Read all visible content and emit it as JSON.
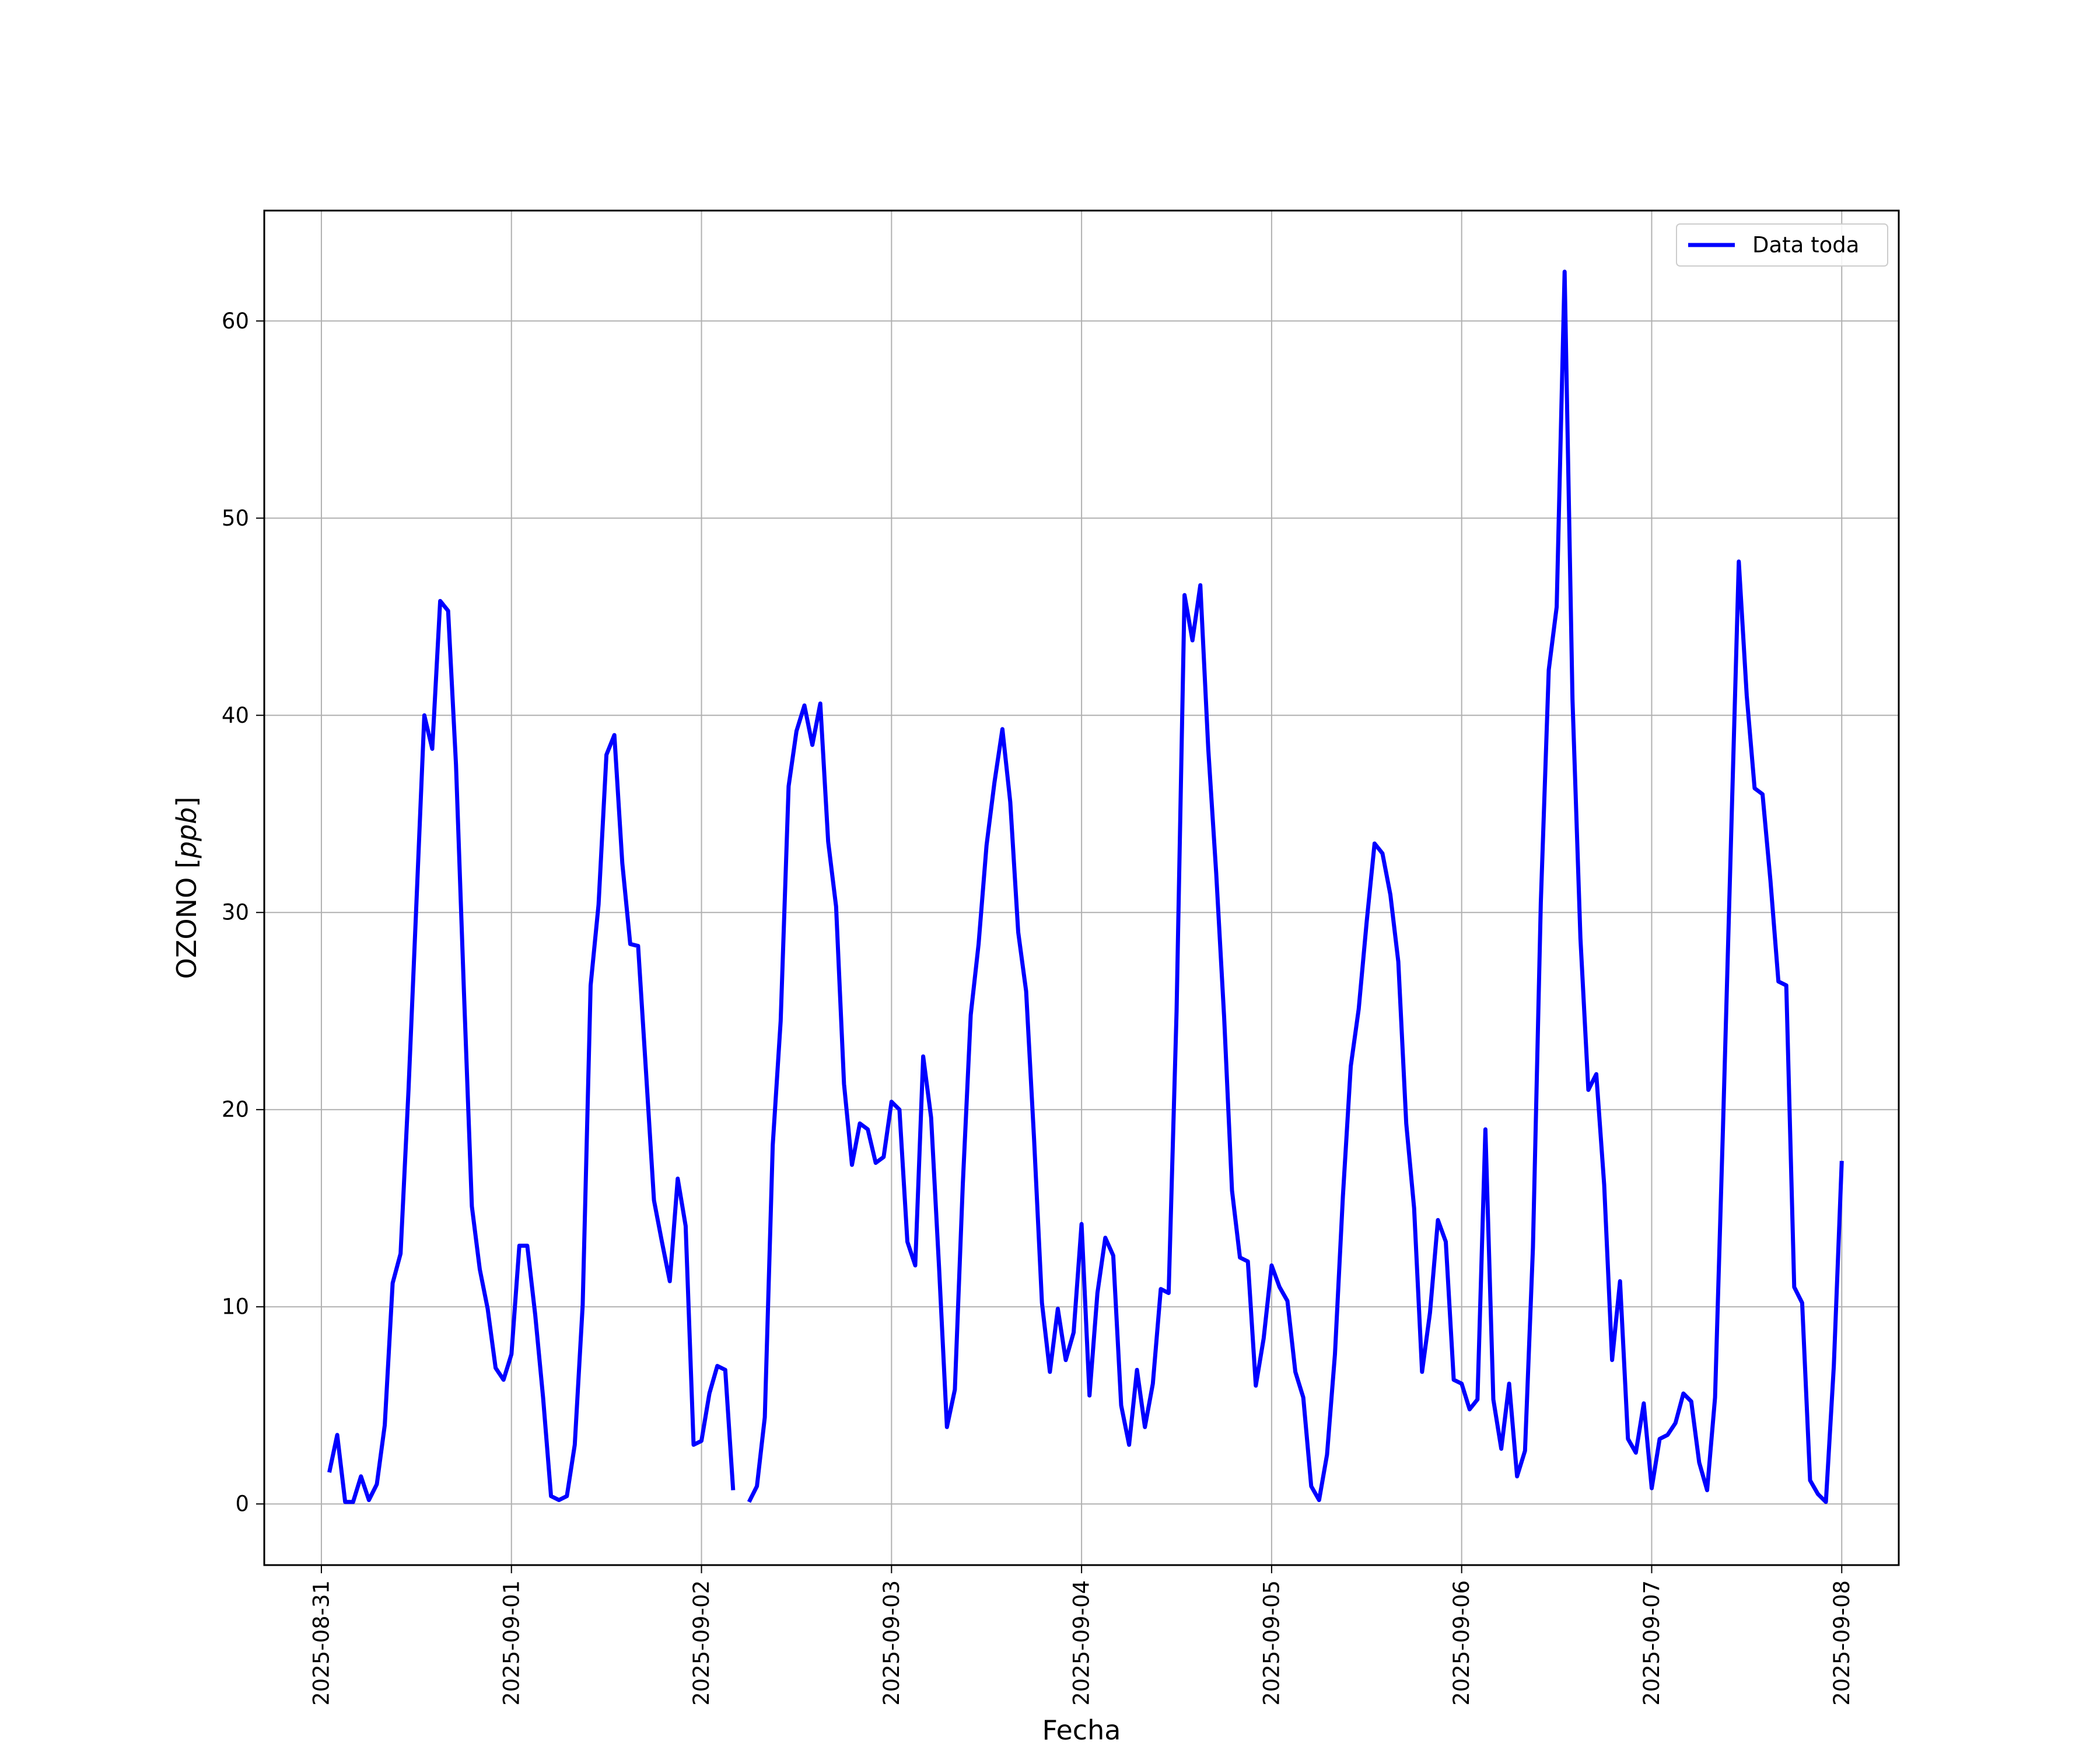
{
  "chart_data": {
    "type": "line",
    "xlabel": "Fecha",
    "ylabel": "OZONO [ppb]",
    "x_ticks": [
      "2025-08-31",
      "2025-09-01",
      "2025-09-02",
      "2025-09-03",
      "2025-09-04",
      "2025-09-05",
      "2025-09-06",
      "2025-09-07",
      "2025-09-08"
    ],
    "y_ticks": [
      0,
      10,
      20,
      30,
      40,
      50,
      60
    ],
    "xlim": [
      "2025-08-30T16:47",
      "2025-09-08T07:12"
    ],
    "ylim": [
      -3.1,
      65.6
    ],
    "grid": true,
    "legend_position": "top-right",
    "series": [
      {
        "name": "Data toda",
        "color": "#0000ff",
        "points": [
          [
            "2025-08-31T01:00",
            1.6
          ],
          [
            "2025-08-31T02:00",
            3.5
          ],
          [
            "2025-08-31T03:00",
            0.1
          ],
          [
            "2025-08-31T04:00",
            0.1
          ],
          [
            "2025-08-31T05:00",
            1.4
          ],
          [
            "2025-08-31T06:00",
            0.2
          ],
          [
            "2025-08-31T07:00",
            1.0
          ],
          [
            "2025-08-31T08:00",
            4.0
          ],
          [
            "2025-08-31T09:00",
            11.2
          ],
          [
            "2025-08-31T10:00",
            12.7
          ],
          [
            "2025-08-31T11:00",
            21.0
          ],
          [
            "2025-08-31T12:00",
            30.5
          ],
          [
            "2025-08-31T13:00",
            40.0
          ],
          [
            "2025-08-31T14:00",
            38.3
          ],
          [
            "2025-08-31T15:00",
            45.8
          ],
          [
            "2025-08-31T16:00",
            45.3
          ],
          [
            "2025-08-31T17:00",
            37.5
          ],
          [
            "2025-08-31T18:00",
            26.0
          ],
          [
            "2025-08-31T19:00",
            15.1
          ],
          [
            "2025-08-31T20:00",
            11.9
          ],
          [
            "2025-08-31T21:00",
            9.9
          ],
          [
            "2025-08-31T22:00",
            6.9
          ],
          [
            "2025-08-31T23:00",
            6.3
          ],
          [
            "2025-09-01T00:00",
            7.6
          ],
          [
            "2025-09-01T01:00",
            13.1
          ],
          [
            "2025-09-01T02:00",
            13.1
          ],
          [
            "2025-09-01T03:00",
            9.6
          ],
          [
            "2025-09-01T04:00",
            5.4
          ],
          [
            "2025-09-01T05:00",
            0.4
          ],
          [
            "2025-09-01T06:00",
            0.2
          ],
          [
            "2025-09-01T07:00",
            0.4
          ],
          [
            "2025-09-01T08:00",
            3.0
          ],
          [
            "2025-09-01T09:00",
            10.1
          ],
          [
            "2025-09-01T10:00",
            26.3
          ],
          [
            "2025-09-01T11:00",
            30.4
          ],
          [
            "2025-09-01T12:00",
            38.0
          ],
          [
            "2025-09-01T13:00",
            39.0
          ],
          [
            "2025-09-01T14:00",
            32.5
          ],
          [
            "2025-09-01T15:00",
            28.4
          ],
          [
            "2025-09-01T16:00",
            28.3
          ],
          [
            "2025-09-01T17:00",
            21.9
          ],
          [
            "2025-09-01T18:00",
            15.4
          ],
          [
            "2025-09-01T19:00",
            13.3
          ],
          [
            "2025-09-01T20:00",
            11.3
          ],
          [
            "2025-09-01T21:00",
            16.5
          ],
          [
            "2025-09-01T22:00",
            14.1
          ],
          [
            "2025-09-01T23:00",
            3.0
          ],
          [
            "2025-09-02T00:00",
            3.2
          ],
          [
            "2025-09-02T01:00",
            5.6
          ],
          [
            "2025-09-02T02:00",
            7.0
          ],
          [
            "2025-09-02T03:00",
            6.8
          ],
          [
            "2025-09-02T04:00",
            0.7
          ],
          null,
          [
            "2025-09-02T06:00",
            0.1
          ],
          [
            "2025-09-02T07:00",
            0.9
          ],
          [
            "2025-09-02T08:00",
            4.4
          ],
          [
            "2025-09-02T09:00",
            18.2
          ],
          [
            "2025-09-02T10:00",
            24.5
          ],
          [
            "2025-09-02T11:00",
            36.4
          ],
          [
            "2025-09-02T12:00",
            39.2
          ],
          [
            "2025-09-02T13:00",
            40.5
          ],
          [
            "2025-09-02T14:00",
            38.5
          ],
          [
            "2025-09-02T15:00",
            40.6
          ],
          [
            "2025-09-02T16:00",
            33.6
          ],
          [
            "2025-09-02T17:00",
            30.3
          ],
          [
            "2025-09-02T18:00",
            21.3
          ],
          [
            "2025-09-02T19:00",
            17.2
          ],
          [
            "2025-09-02T20:00",
            19.3
          ],
          [
            "2025-09-02T21:00",
            19.0
          ],
          [
            "2025-09-02T22:00",
            17.3
          ],
          [
            "2025-09-02T23:00",
            17.6
          ],
          [
            "2025-09-03T00:00",
            20.4
          ],
          [
            "2025-09-03T01:00",
            20.0
          ],
          [
            "2025-09-03T02:00",
            13.3
          ],
          [
            "2025-09-03T03:00",
            12.1
          ],
          [
            "2025-09-03T04:00",
            22.7
          ],
          [
            "2025-09-03T05:00",
            19.6
          ],
          [
            "2025-09-03T06:00",
            12.0
          ],
          [
            "2025-09-03T07:00",
            3.9
          ],
          [
            "2025-09-03T08:00",
            5.8
          ],
          [
            "2025-09-03T09:00",
            16.2
          ],
          [
            "2025-09-03T10:00",
            24.8
          ],
          [
            "2025-09-03T11:00",
            28.4
          ],
          [
            "2025-09-03T12:00",
            33.4
          ],
          [
            "2025-09-03T13:00",
            36.6
          ],
          [
            "2025-09-03T14:00",
            39.3
          ],
          [
            "2025-09-03T15:00",
            35.6
          ],
          [
            "2025-09-03T16:00",
            29.0
          ],
          [
            "2025-09-03T17:00",
            26.0
          ],
          [
            "2025-09-03T18:00",
            18.5
          ],
          [
            "2025-09-03T19:00",
            10.2
          ],
          [
            "2025-09-03T20:00",
            6.7
          ],
          [
            "2025-09-03T21:00",
            9.9
          ],
          [
            "2025-09-03T22:00",
            7.3
          ],
          [
            "2025-09-03T23:00",
            8.7
          ],
          [
            "2025-09-04T00:00",
            14.2
          ],
          [
            "2025-09-04T01:00",
            5.5
          ],
          [
            "2025-09-04T02:00",
            10.7
          ],
          [
            "2025-09-04T03:00",
            13.5
          ],
          [
            "2025-09-04T04:00",
            12.6
          ],
          [
            "2025-09-04T05:00",
            5.0
          ],
          [
            "2025-09-04T06:00",
            3.0
          ],
          [
            "2025-09-04T07:00",
            6.8
          ],
          [
            "2025-09-04T08:00",
            3.9
          ],
          [
            "2025-09-04T09:00",
            6.1
          ],
          [
            "2025-09-04T10:00",
            10.9
          ],
          [
            "2025-09-04T11:00",
            10.7
          ],
          [
            "2025-09-04T12:00",
            25.0
          ],
          [
            "2025-09-04T13:00",
            46.1
          ],
          [
            "2025-09-04T14:00",
            43.8
          ],
          [
            "2025-09-04T15:00",
            46.6
          ],
          [
            "2025-09-04T16:00",
            38.3
          ],
          [
            "2025-09-04T17:00",
            32.0
          ],
          [
            "2025-09-04T18:00",
            24.7
          ],
          [
            "2025-09-04T19:00",
            15.9
          ],
          [
            "2025-09-04T20:00",
            12.5
          ],
          [
            "2025-09-04T21:00",
            12.3
          ],
          [
            "2025-09-04T22:00",
            6.0
          ],
          [
            "2025-09-04T23:00",
            8.4
          ],
          [
            "2025-09-05T00:00",
            12.1
          ],
          [
            "2025-09-05T01:00",
            11.0
          ],
          [
            "2025-09-05T02:00",
            10.3
          ],
          [
            "2025-09-05T03:00",
            6.7
          ],
          [
            "2025-09-05T04:00",
            5.4
          ],
          [
            "2025-09-05T05:00",
            0.9
          ],
          [
            "2025-09-05T06:00",
            0.2
          ],
          [
            "2025-09-05T07:00",
            2.5
          ],
          [
            "2025-09-05T08:00",
            7.6
          ],
          [
            "2025-09-05T09:00",
            15.6
          ],
          [
            "2025-09-05T10:00",
            22.2
          ],
          [
            "2025-09-05T11:00",
            25.1
          ],
          [
            "2025-09-05T12:00",
            29.5
          ],
          [
            "2025-09-05T13:00",
            33.5
          ],
          [
            "2025-09-05T14:00",
            33.0
          ],
          [
            "2025-09-05T15:00",
            30.9
          ],
          [
            "2025-09-05T16:00",
            27.5
          ],
          [
            "2025-09-05T17:00",
            19.3
          ],
          [
            "2025-09-05T18:00",
            15.0
          ],
          [
            "2025-09-05T19:00",
            6.7
          ],
          [
            "2025-09-05T20:00",
            9.7
          ],
          [
            "2025-09-05T21:00",
            14.4
          ],
          [
            "2025-09-05T22:00",
            13.3
          ],
          [
            "2025-09-05T23:00",
            6.3
          ],
          [
            "2025-09-06T00:00",
            6.1
          ],
          [
            "2025-09-06T01:00",
            4.8
          ],
          [
            "2025-09-06T02:00",
            5.3
          ],
          [
            "2025-09-06T03:00",
            19.0
          ],
          [
            "2025-09-06T04:00",
            5.3
          ],
          [
            "2025-09-06T05:00",
            2.8
          ],
          [
            "2025-09-06T06:00",
            6.1
          ],
          [
            "2025-09-06T07:00",
            1.4
          ],
          [
            "2025-09-06T08:00",
            2.7
          ],
          [
            "2025-09-06T09:00",
            13.0
          ],
          [
            "2025-09-06T10:00",
            30.5
          ],
          [
            "2025-09-06T11:00",
            42.3
          ],
          [
            "2025-09-06T12:00",
            45.5
          ],
          [
            "2025-09-06T13:00",
            62.5
          ],
          [
            "2025-09-06T14:00",
            40.8
          ],
          [
            "2025-09-06T15:00",
            28.7
          ],
          [
            "2025-09-06T16:00",
            21.0
          ],
          [
            "2025-09-06T17:00",
            21.8
          ],
          [
            "2025-09-06T18:00",
            16.2
          ],
          [
            "2025-09-06T19:00",
            7.3
          ],
          [
            "2025-09-06T20:00",
            11.3
          ],
          [
            "2025-09-06T21:00",
            3.3
          ],
          [
            "2025-09-06T22:00",
            2.6
          ],
          [
            "2025-09-06T23:00",
            5.1
          ],
          [
            "2025-09-07T00:00",
            0.8
          ],
          [
            "2025-09-07T01:00",
            3.3
          ],
          [
            "2025-09-07T02:00",
            3.5
          ],
          [
            "2025-09-07T03:00",
            4.1
          ],
          [
            "2025-09-07T04:00",
            5.6
          ],
          [
            "2025-09-07T05:00",
            5.2
          ],
          [
            "2025-09-07T06:00",
            2.1
          ],
          [
            "2025-09-07T07:00",
            0.7
          ],
          [
            "2025-09-07T08:00",
            5.4
          ],
          [
            "2025-09-07T09:00",
            19.0
          ],
          [
            "2025-09-07T10:00",
            33.4
          ],
          [
            "2025-09-07T11:00",
            47.8
          ],
          [
            "2025-09-07T12:00",
            41.0
          ],
          [
            "2025-09-07T13:00",
            36.3
          ],
          [
            "2025-09-07T14:00",
            36.0
          ],
          [
            "2025-09-07T15:00",
            31.6
          ],
          [
            "2025-09-07T16:00",
            26.5
          ],
          [
            "2025-09-07T17:00",
            26.3
          ],
          [
            "2025-09-07T18:00",
            11.0
          ],
          [
            "2025-09-07T19:00",
            10.2
          ],
          [
            "2025-09-07T20:00",
            1.2
          ],
          [
            "2025-09-07T21:00",
            0.5
          ],
          [
            "2025-09-07T22:00",
            0.1
          ],
          [
            "2025-09-07T23:00",
            7.0
          ],
          [
            "2025-09-08T00:00",
            17.4
          ]
        ]
      }
    ]
  }
}
